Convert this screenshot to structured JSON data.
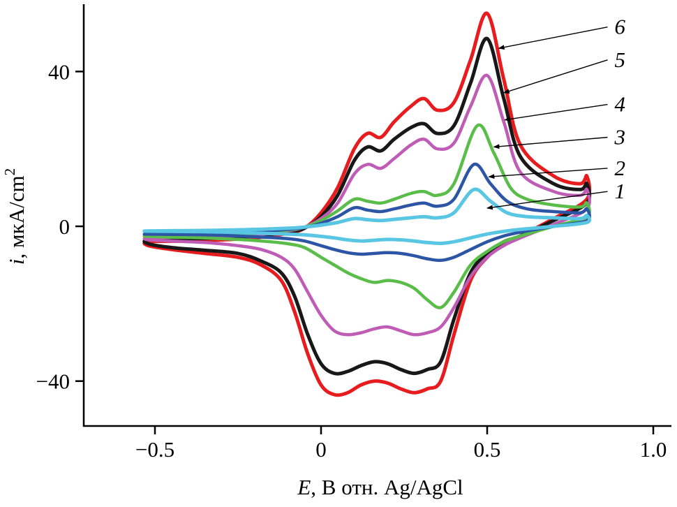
{
  "figure": {
    "background": "#ffffff"
  },
  "axes": {
    "x": {
      "var": "E",
      "rest": ", В отн. Ag/AgCl",
      "ticks": [
        {
          "v": -0.5,
          "label": "−0.5"
        },
        {
          "v": 0,
          "label": "0"
        },
        {
          "v": 0.5,
          "label": "0.5"
        },
        {
          "v": 1.0,
          "label": "1.0"
        }
      ]
    },
    "y": {
      "var": "i",
      "rest": ", мкА/cm",
      "sup": "2",
      "ticks": [
        {
          "v": 40,
          "label": "40"
        },
        {
          "v": 0,
          "label": "0"
        },
        {
          "v": -40,
          "label": "−40"
        }
      ]
    }
  },
  "chart_data": {
    "type": "line",
    "title": "",
    "xlabel": "E, В отн. Ag/AgCl",
    "ylabel": "i, мкА/cm2",
    "xlim": [
      -0.7143,
      1.0504
    ],
    "ylim": [
      -51.6,
      57.4
    ],
    "grid": false,
    "legend_position": "right-annotations",
    "description": "Cyclic voltammograms, 6 curves (closed loops), sweep from -0.52 V to 0.8 V vs Ag/AgCl",
    "series": [
      {
        "name": "6",
        "color": "#e61c1f",
        "width": 5,
        "points": [
          [
            -0.52,
            -4
          ],
          [
            -0.4,
            -3.8
          ],
          [
            -0.3,
            -3.5
          ],
          [
            -0.2,
            -3
          ],
          [
            -0.1,
            -1.8
          ],
          [
            -0.05,
            -0.5
          ],
          [
            0,
            3.5
          ],
          [
            0.05,
            10
          ],
          [
            0.1,
            20
          ],
          [
            0.14,
            24
          ],
          [
            0.18,
            23
          ],
          [
            0.22,
            27
          ],
          [
            0.27,
            31
          ],
          [
            0.31,
            33
          ],
          [
            0.35,
            30
          ],
          [
            0.4,
            32
          ],
          [
            0.45,
            43
          ],
          [
            0.5,
            55
          ],
          [
            0.55,
            38
          ],
          [
            0.6,
            21
          ],
          [
            0.7,
            13
          ],
          [
            0.78,
            11
          ],
          [
            0.8,
            13
          ],
          [
            0.8,
            7
          ],
          [
            0.7,
            2
          ],
          [
            0.6,
            -2.5
          ],
          [
            0.55,
            -4.5
          ],
          [
            0.5,
            -8
          ],
          [
            0.45,
            -14
          ],
          [
            0.4,
            -28
          ],
          [
            0.36,
            -40
          ],
          [
            0.32,
            -42
          ],
          [
            0.28,
            -43
          ],
          [
            0.24,
            -42
          ],
          [
            0.2,
            -40.5
          ],
          [
            0.16,
            -40
          ],
          [
            0.12,
            -41
          ],
          [
            0.08,
            -43
          ],
          [
            0.04,
            -43.5
          ],
          [
            0,
            -41
          ],
          [
            -0.04,
            -33
          ],
          [
            -0.08,
            -22
          ],
          [
            -0.12,
            -14
          ],
          [
            -0.18,
            -10
          ],
          [
            -0.25,
            -8
          ],
          [
            -0.35,
            -7
          ],
          [
            -0.45,
            -6
          ],
          [
            -0.52,
            -5
          ]
        ]
      },
      {
        "name": "5",
        "color": "#181818",
        "width": 5,
        "points": [
          [
            -0.52,
            -3.5
          ],
          [
            -0.4,
            -3.2
          ],
          [
            -0.3,
            -3
          ],
          [
            -0.2,
            -2.5
          ],
          [
            -0.1,
            -1.5
          ],
          [
            -0.05,
            -0.5
          ],
          [
            0,
            2.5
          ],
          [
            0.05,
            8
          ],
          [
            0.1,
            17
          ],
          [
            0.14,
            20.5
          ],
          [
            0.18,
            19.5
          ],
          [
            0.22,
            22.5
          ],
          [
            0.27,
            25.5
          ],
          [
            0.31,
            26.5
          ],
          [
            0.35,
            24
          ],
          [
            0.4,
            26
          ],
          [
            0.45,
            37
          ],
          [
            0.5,
            48.5
          ],
          [
            0.55,
            33
          ],
          [
            0.6,
            18
          ],
          [
            0.7,
            11
          ],
          [
            0.78,
            9.5
          ],
          [
            0.8,
            11
          ],
          [
            0.8,
            6
          ],
          [
            0.7,
            1.5
          ],
          [
            0.6,
            -2.5
          ],
          [
            0.55,
            -4
          ],
          [
            0.5,
            -7
          ],
          [
            0.45,
            -12
          ],
          [
            0.4,
            -24
          ],
          [
            0.36,
            -35
          ],
          [
            0.32,
            -37
          ],
          [
            0.28,
            -38
          ],
          [
            0.24,
            -37
          ],
          [
            0.2,
            -35.5
          ],
          [
            0.16,
            -35
          ],
          [
            0.12,
            -36
          ],
          [
            0.08,
            -37.5
          ],
          [
            0.04,
            -38
          ],
          [
            0,
            -35.5
          ],
          [
            -0.04,
            -28
          ],
          [
            -0.08,
            -18
          ],
          [
            -0.12,
            -12
          ],
          [
            -0.18,
            -9
          ],
          [
            -0.25,
            -7
          ],
          [
            -0.35,
            -6.2
          ],
          [
            -0.45,
            -5.5
          ],
          [
            -0.52,
            -4.5
          ]
        ]
      },
      {
        "name": "4",
        "color": "#bf5cb5",
        "width": 4.5,
        "points": [
          [
            -0.52,
            -3
          ],
          [
            -0.4,
            -2.8
          ],
          [
            -0.3,
            -2.6
          ],
          [
            -0.2,
            -2.2
          ],
          [
            -0.1,
            -1.2
          ],
          [
            -0.05,
            -0.2
          ],
          [
            0,
            2
          ],
          [
            0.05,
            6
          ],
          [
            0.1,
            13.5
          ],
          [
            0.14,
            16
          ],
          [
            0.18,
            15
          ],
          [
            0.22,
            17.5
          ],
          [
            0.27,
            21
          ],
          [
            0.31,
            22.5
          ],
          [
            0.35,
            20
          ],
          [
            0.4,
            21.5
          ],
          [
            0.45,
            31
          ],
          [
            0.5,
            39
          ],
          [
            0.55,
            27
          ],
          [
            0.6,
            14
          ],
          [
            0.7,
            9
          ],
          [
            0.78,
            8
          ],
          [
            0.8,
            9.5
          ],
          [
            0.8,
            4.5
          ],
          [
            0.7,
            0.5
          ],
          [
            0.6,
            -3
          ],
          [
            0.55,
            -5
          ],
          [
            0.5,
            -8
          ],
          [
            0.45,
            -13
          ],
          [
            0.4,
            -21
          ],
          [
            0.36,
            -26
          ],
          [
            0.32,
            -27.5
          ],
          [
            0.28,
            -28
          ],
          [
            0.24,
            -27
          ],
          [
            0.2,
            -26
          ],
          [
            0.16,
            -26.5
          ],
          [
            0.12,
            -27.5
          ],
          [
            0.08,
            -28
          ],
          [
            0.04,
            -27
          ],
          [
            0,
            -23
          ],
          [
            -0.04,
            -17
          ],
          [
            -0.08,
            -11
          ],
          [
            -0.12,
            -8
          ],
          [
            -0.18,
            -6
          ],
          [
            -0.25,
            -5
          ],
          [
            -0.35,
            -4.2
          ],
          [
            -0.45,
            -3.8
          ],
          [
            -0.52,
            -3.5
          ]
        ]
      },
      {
        "name": "3",
        "color": "#5abd49",
        "width": 4.5,
        "points": [
          [
            -0.52,
            -2.5
          ],
          [
            -0.4,
            -2.3
          ],
          [
            -0.3,
            -2.1
          ],
          [
            -0.2,
            -1.8
          ],
          [
            -0.1,
            -1
          ],
          [
            -0.05,
            -0.2
          ],
          [
            0,
            1.5
          ],
          [
            0.05,
            4
          ],
          [
            0.1,
            7
          ],
          [
            0.14,
            6.5
          ],
          [
            0.18,
            6
          ],
          [
            0.22,
            7
          ],
          [
            0.27,
            8.5
          ],
          [
            0.31,
            9
          ],
          [
            0.35,
            8
          ],
          [
            0.4,
            11
          ],
          [
            0.47,
            26
          ],
          [
            0.52,
            19
          ],
          [
            0.57,
            10
          ],
          [
            0.62,
            7
          ],
          [
            0.7,
            5.5
          ],
          [
            0.78,
            5
          ],
          [
            0.8,
            6
          ],
          [
            0.8,
            2.5
          ],
          [
            0.7,
            0
          ],
          [
            0.6,
            -2.5
          ],
          [
            0.55,
            -4
          ],
          [
            0.5,
            -6.5
          ],
          [
            0.45,
            -10
          ],
          [
            0.4,
            -17
          ],
          [
            0.36,
            -21
          ],
          [
            0.32,
            -19
          ],
          [
            0.28,
            -16
          ],
          [
            0.24,
            -14.5
          ],
          [
            0.2,
            -14
          ],
          [
            0.16,
            -14.5
          ],
          [
            0.12,
            -13.5
          ],
          [
            0.08,
            -12
          ],
          [
            0.04,
            -10
          ],
          [
            0,
            -8
          ],
          [
            -0.05,
            -5.5
          ],
          [
            -0.1,
            -4.5
          ],
          [
            -0.18,
            -3.8
          ],
          [
            -0.25,
            -3.4
          ],
          [
            -0.35,
            -3
          ],
          [
            -0.45,
            -2.8
          ],
          [
            -0.52,
            -2.6
          ]
        ]
      },
      {
        "name": "2",
        "color": "#2d55a5",
        "width": 4.5,
        "points": [
          [
            -0.52,
            -2
          ],
          [
            -0.4,
            -1.9
          ],
          [
            -0.3,
            -1.7
          ],
          [
            -0.2,
            -1.4
          ],
          [
            -0.1,
            -0.8
          ],
          [
            -0.05,
            -0.3
          ],
          [
            0,
            0.8
          ],
          [
            0.05,
            2.5
          ],
          [
            0.1,
            4.8
          ],
          [
            0.14,
            4.2
          ],
          [
            0.18,
            3.8
          ],
          [
            0.22,
            4.5
          ],
          [
            0.27,
            5.5
          ],
          [
            0.31,
            6
          ],
          [
            0.35,
            5.2
          ],
          [
            0.4,
            7
          ],
          [
            0.46,
            16
          ],
          [
            0.51,
            11
          ],
          [
            0.56,
            6.5
          ],
          [
            0.62,
            4.5
          ],
          [
            0.7,
            3.8
          ],
          [
            0.78,
            3.5
          ],
          [
            0.8,
            4.5
          ],
          [
            0.8,
            1.5
          ],
          [
            0.7,
            0
          ],
          [
            0.6,
            -1.5
          ],
          [
            0.55,
            -2.5
          ],
          [
            0.5,
            -4
          ],
          [
            0.45,
            -6
          ],
          [
            0.4,
            -8
          ],
          [
            0.36,
            -8.8
          ],
          [
            0.32,
            -8.4
          ],
          [
            0.28,
            -7.6
          ],
          [
            0.24,
            -7
          ],
          [
            0.2,
            -6.8
          ],
          [
            0.16,
            -7
          ],
          [
            0.12,
            -7.2
          ],
          [
            0.08,
            -6.8
          ],
          [
            0.04,
            -6
          ],
          [
            0,
            -5
          ],
          [
            -0.05,
            -3.8
          ],
          [
            -0.1,
            -3.2
          ],
          [
            -0.18,
            -2.8
          ],
          [
            -0.25,
            -2.5
          ],
          [
            -0.35,
            -2.2
          ],
          [
            -0.45,
            -2.1
          ],
          [
            -0.52,
            -2.05
          ]
        ]
      },
      {
        "name": "1",
        "color": "#59c7e3",
        "width": 5,
        "points": [
          [
            -0.52,
            -1.2
          ],
          [
            -0.4,
            -1.1
          ],
          [
            -0.3,
            -1
          ],
          [
            -0.2,
            -0.8
          ],
          [
            -0.1,
            -0.5
          ],
          [
            -0.05,
            -0.2
          ],
          [
            0,
            0.3
          ],
          [
            0.05,
            1
          ],
          [
            0.1,
            2
          ],
          [
            0.14,
            1.7
          ],
          [
            0.18,
            1.5
          ],
          [
            0.22,
            1.8
          ],
          [
            0.27,
            2.2
          ],
          [
            0.31,
            2.5
          ],
          [
            0.35,
            2.2
          ],
          [
            0.4,
            3.5
          ],
          [
            0.46,
            9.5
          ],
          [
            0.51,
            6.5
          ],
          [
            0.56,
            3.5
          ],
          [
            0.62,
            2.5
          ],
          [
            0.7,
            2.2
          ],
          [
            0.78,
            2
          ],
          [
            0.8,
            2.8
          ],
          [
            0.8,
            1
          ],
          [
            0.7,
            0
          ],
          [
            0.6,
            -0.8
          ],
          [
            0.55,
            -1.3
          ],
          [
            0.5,
            -2
          ],
          [
            0.45,
            -3
          ],
          [
            0.4,
            -4
          ],
          [
            0.36,
            -4.4
          ],
          [
            0.32,
            -4.2
          ],
          [
            0.28,
            -3.8
          ],
          [
            0.24,
            -3.5
          ],
          [
            0.2,
            -3.4
          ],
          [
            0.16,
            -3.6
          ],
          [
            0.12,
            -3.8
          ],
          [
            0.08,
            -3.5
          ],
          [
            0.04,
            -3
          ],
          [
            0,
            -2.6
          ],
          [
            -0.05,
            -2.2
          ],
          [
            -0.1,
            -2
          ],
          [
            -0.18,
            -1.8
          ],
          [
            -0.25,
            -1.6
          ],
          [
            -0.35,
            -1.4
          ],
          [
            -0.45,
            -1.3
          ],
          [
            -0.52,
            -1.25
          ]
        ]
      }
    ],
    "annotations": [
      {
        "label": "6",
        "lx": 0.875,
        "ly": 51.5,
        "tx": 0.535,
        "ty": 46
      },
      {
        "label": "5",
        "lx": 0.875,
        "ly": 43,
        "tx": 0.55,
        "ty": 34.5
      },
      {
        "label": "4",
        "lx": 0.875,
        "ly": 31.5,
        "tx": 0.553,
        "ty": 27.5
      },
      {
        "label": "3",
        "lx": 0.875,
        "ly": 23,
        "tx": 0.52,
        "ty": 20.5
      },
      {
        "label": "2",
        "lx": 0.875,
        "ly": 15,
        "tx": 0.505,
        "ty": 12.8
      },
      {
        "label": "1",
        "lx": 0.875,
        "ly": 9,
        "tx": 0.5,
        "ty": 4.7
      }
    ]
  }
}
